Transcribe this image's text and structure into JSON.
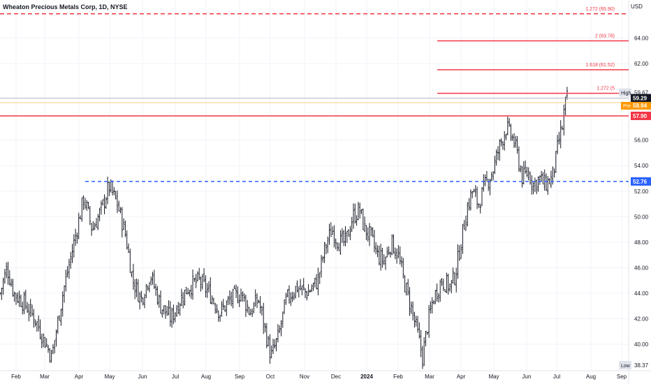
{
  "header": {
    "title": "Wheaton Precious Metals Corp, 1D, NYSE",
    "currency": "USD"
  },
  "colors": {
    "up": "#131722",
    "down": "#131722",
    "red_line": "#f23645",
    "blue_line": "#2962ff",
    "pre_badge": "#ff9800",
    "black_badge": "#131722",
    "grid": "#f0f3fa",
    "axis_text": "#131722"
  },
  "chart_data": {
    "type": "candlestick",
    "symbol": "Wheaton Precious Metals Corp",
    "interval": "1D",
    "exchange": "NYSE",
    "ylim": [
      37.8,
      66.5
    ],
    "y_ticks": [
      40,
      42,
      44,
      46,
      48,
      50,
      52,
      54,
      56,
      62,
      64
    ],
    "y_tick_labels": [
      "40.00",
      "42.00",
      "44.00",
      "46.00",
      "48.00",
      "50.00",
      "52.00",
      "54.00",
      "56.00",
      "62.00",
      "64.00"
    ],
    "x_labels": [
      "Feb",
      "Mar",
      "Apr",
      "May",
      "Jun",
      "Jul",
      "Aug",
      "Sep",
      "Oct",
      "Nov",
      "Dec",
      "2024",
      "Feb",
      "Mar",
      "Apr",
      "May",
      "Jun",
      "Jul",
      "Aug",
      "Sep"
    ],
    "x_label_positions_days": [
      23,
      64,
      113,
      157,
      204,
      251,
      295,
      343,
      387,
      436,
      481,
      525,
      570,
      615,
      660,
      707,
      754,
      797,
      846,
      890
    ],
    "path_points_days": [
      0,
      10,
      20,
      35,
      50,
      62,
      74,
      90,
      108,
      120,
      132,
      145,
      156,
      168,
      180,
      190,
      202,
      215,
      230,
      245,
      258,
      270,
      285,
      300,
      315,
      330,
      345,
      358,
      370,
      380,
      388,
      398,
      410,
      425,
      440,
      455,
      465,
      475,
      485,
      495,
      505,
      515,
      522,
      530,
      540,
      550,
      560,
      570,
      578,
      588,
      597,
      605,
      612,
      620,
      632,
      645,
      652,
      660,
      668,
      676,
      685,
      695,
      705,
      715,
      725,
      735,
      740,
      748,
      756,
      764,
      772,
      780,
      790,
      796,
      800,
      805,
      808,
      812
    ],
    "path_points_close": [
      44.0,
      46.0,
      44.0,
      43.2,
      42.0,
      40.5,
      39.0,
      44.0,
      48.5,
      51.5,
      49.0,
      50.5,
      52.4,
      51.0,
      48.5,
      45.0,
      43.5,
      45.5,
      43.0,
      42.0,
      43.5,
      44.5,
      45.0,
      44.0,
      42.5,
      43.5,
      44.0,
      42.5,
      43.5,
      41.0,
      39.0,
      40.5,
      43.5,
      44.5,
      44.0,
      45.0,
      47.5,
      49.0,
      48.0,
      48.0,
      50.0,
      50.5,
      49.0,
      48.5,
      47.0,
      46.5,
      48.0,
      47.0,
      45.0,
      43.0,
      41.0,
      39.0,
      41.5,
      43.5,
      45.0,
      44.5,
      45.5,
      48.0,
      50.5,
      52.0,
      51.0,
      52.5,
      53.5,
      55.5,
      57.0,
      56.0,
      55.0,
      53.0,
      53.5,
      52.5,
      53.0,
      52.5,
      53.0,
      54.5,
      56.0,
      57.0,
      58.5,
      59.3
    ],
    "series": [
      {
        "kind": "ohlc-bars",
        "note_source": "daily OHLC bars",
        "last_close": 59.29
      }
    ],
    "levels": {
      "high": {
        "label": "High",
        "value": 59.67,
        "text": "59.67"
      },
      "low": {
        "label": "Low",
        "value": 38.37,
        "text": "38.37"
      },
      "last": {
        "value": 59.29,
        "text": "59.29"
      },
      "pre": {
        "label": "Pre",
        "value": 58.94,
        "text": "58.94"
      },
      "resistance": {
        "value": 57.9,
        "text": "57.90"
      },
      "support": {
        "value": 52.76,
        "text": "52.76"
      }
    },
    "fib_levels": [
      {
        "label": "1.272 (65.90)",
        "value": 65.9,
        "style": "dashed",
        "x_start_day": 0
      },
      {
        "label": "2 (63.78)",
        "value": 63.78,
        "style": "solid",
        "x_start_day": 626
      },
      {
        "label": "1.618 (61.52)",
        "value": 61.52,
        "style": "solid",
        "x_start_day": 626
      },
      {
        "label": "1.272 (5",
        "value": 59.67,
        "style": "solid",
        "x_start_day": 626
      }
    ],
    "support_line_start_day": 122,
    "resistance_line_start_day": 0,
    "gray_lines": [
      59.29,
      58.94
    ]
  }
}
